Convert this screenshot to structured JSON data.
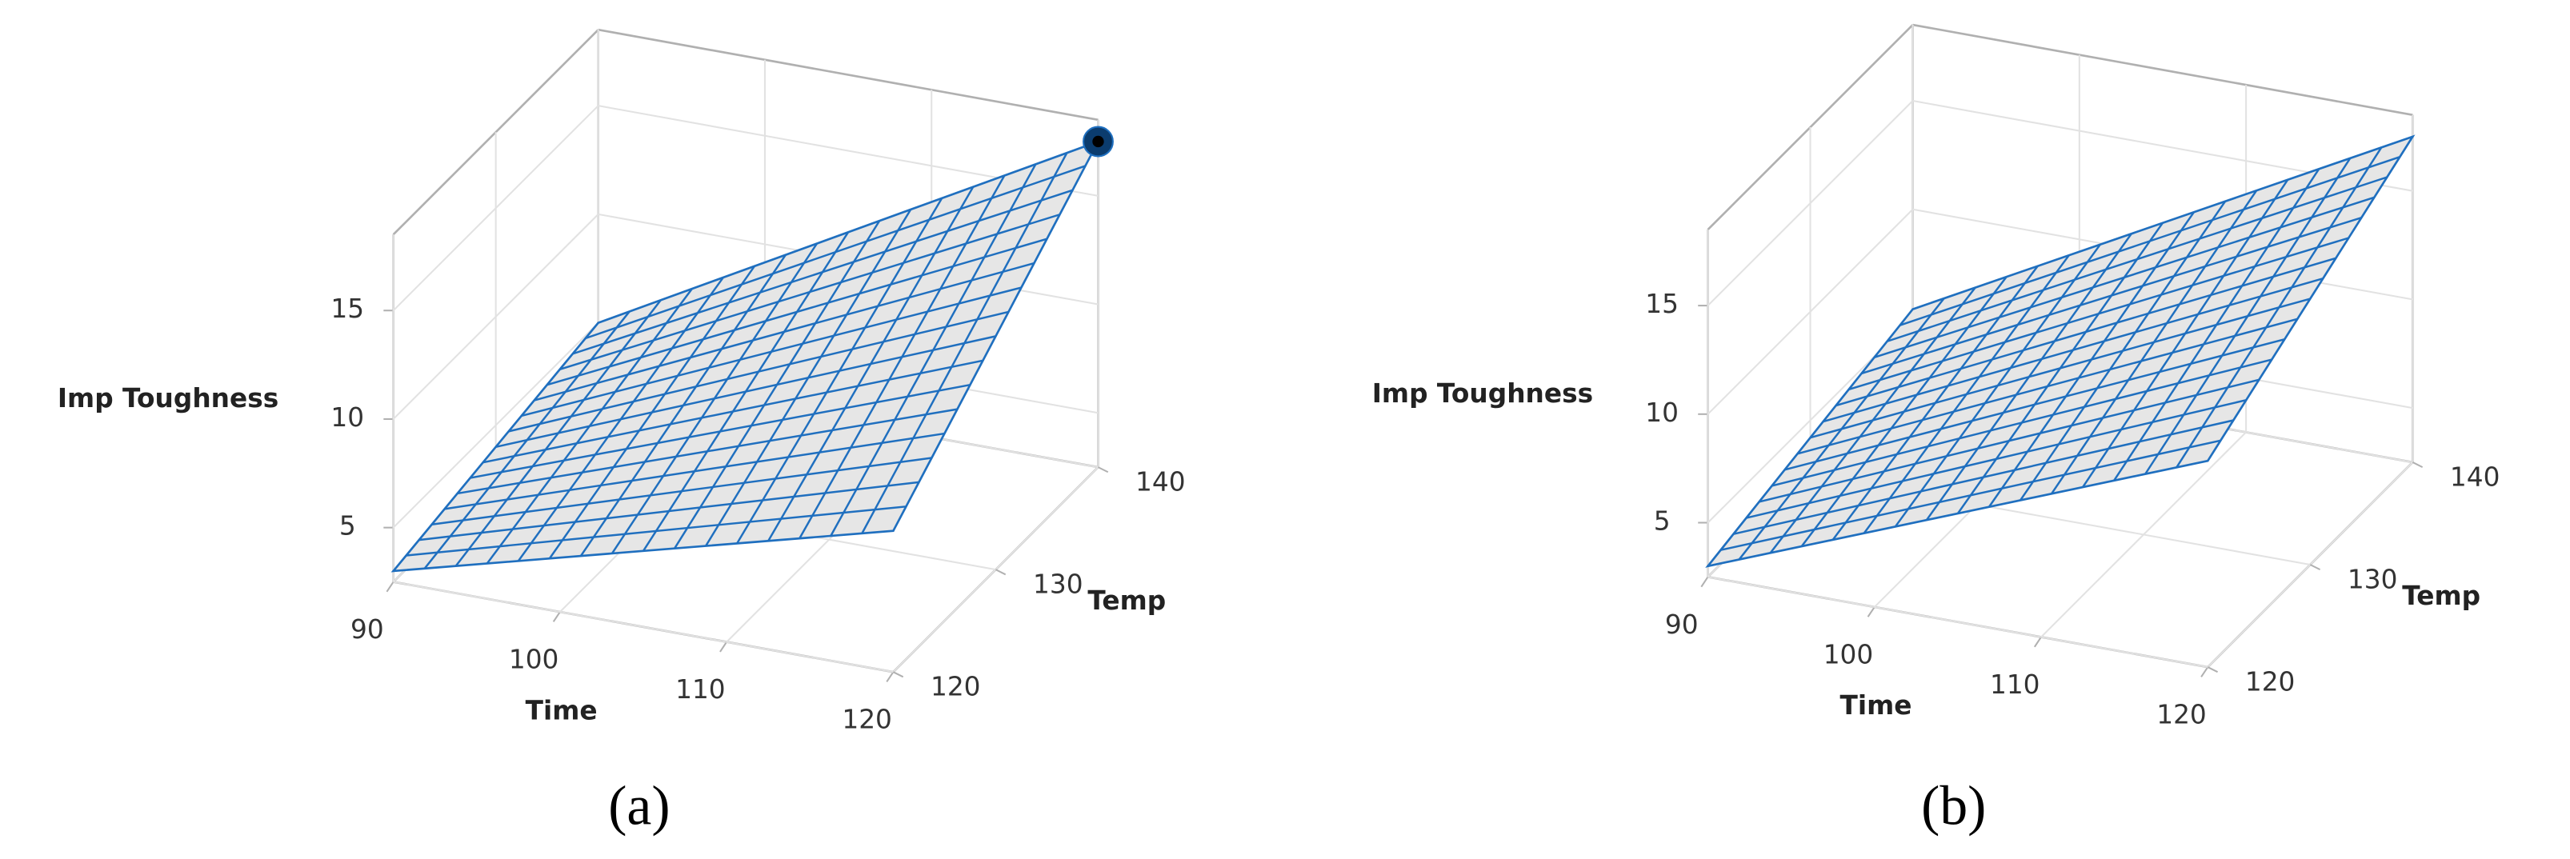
{
  "chart_data": [
    {
      "type": "surface",
      "caption": "(a)",
      "xlabel": "Time",
      "ylabel": "Temp",
      "zlabel": "Imp Toughness",
      "x": [
        90,
        120
      ],
      "y": [
        120,
        140
      ],
      "z": [
        [
          3,
          5
        ],
        [
          9,
          17.5
        ]
      ],
      "xlim": [
        90,
        120
      ],
      "ylim": [
        120,
        140
      ],
      "zlim": [
        2.5,
        18.5
      ],
      "xticks": [
        90,
        100,
        110,
        120
      ],
      "yticks": [
        120,
        130,
        140
      ],
      "zticks": [
        5,
        10,
        15
      ],
      "color": "#1f6fbf",
      "fill": "#e6e6e6",
      "optimum_marker": true,
      "grid": true
    },
    {
      "type": "surface",
      "caption": "(b)",
      "xlabel": "Time",
      "ylabel": "Temp",
      "zlabel": "Imp Toughness",
      "x": [
        90,
        120
      ],
      "y": [
        120,
        140
      ],
      "z": [
        [
          3,
          5.4
        ],
        [
          12,
          17.5
        ]
      ],
      "xlim": [
        90,
        120
      ],
      "ylim": [
        120,
        140
      ],
      "zlim": [
        2.5,
        18.5
      ],
      "xticks": [
        90,
        100,
        110,
        120
      ],
      "yticks": [
        120,
        130,
        140
      ],
      "zticks": [
        5,
        10,
        15
      ],
      "color": "#1f6fbf",
      "fill": "#e6e6e6",
      "optimum_marker": false,
      "grid": true
    }
  ]
}
